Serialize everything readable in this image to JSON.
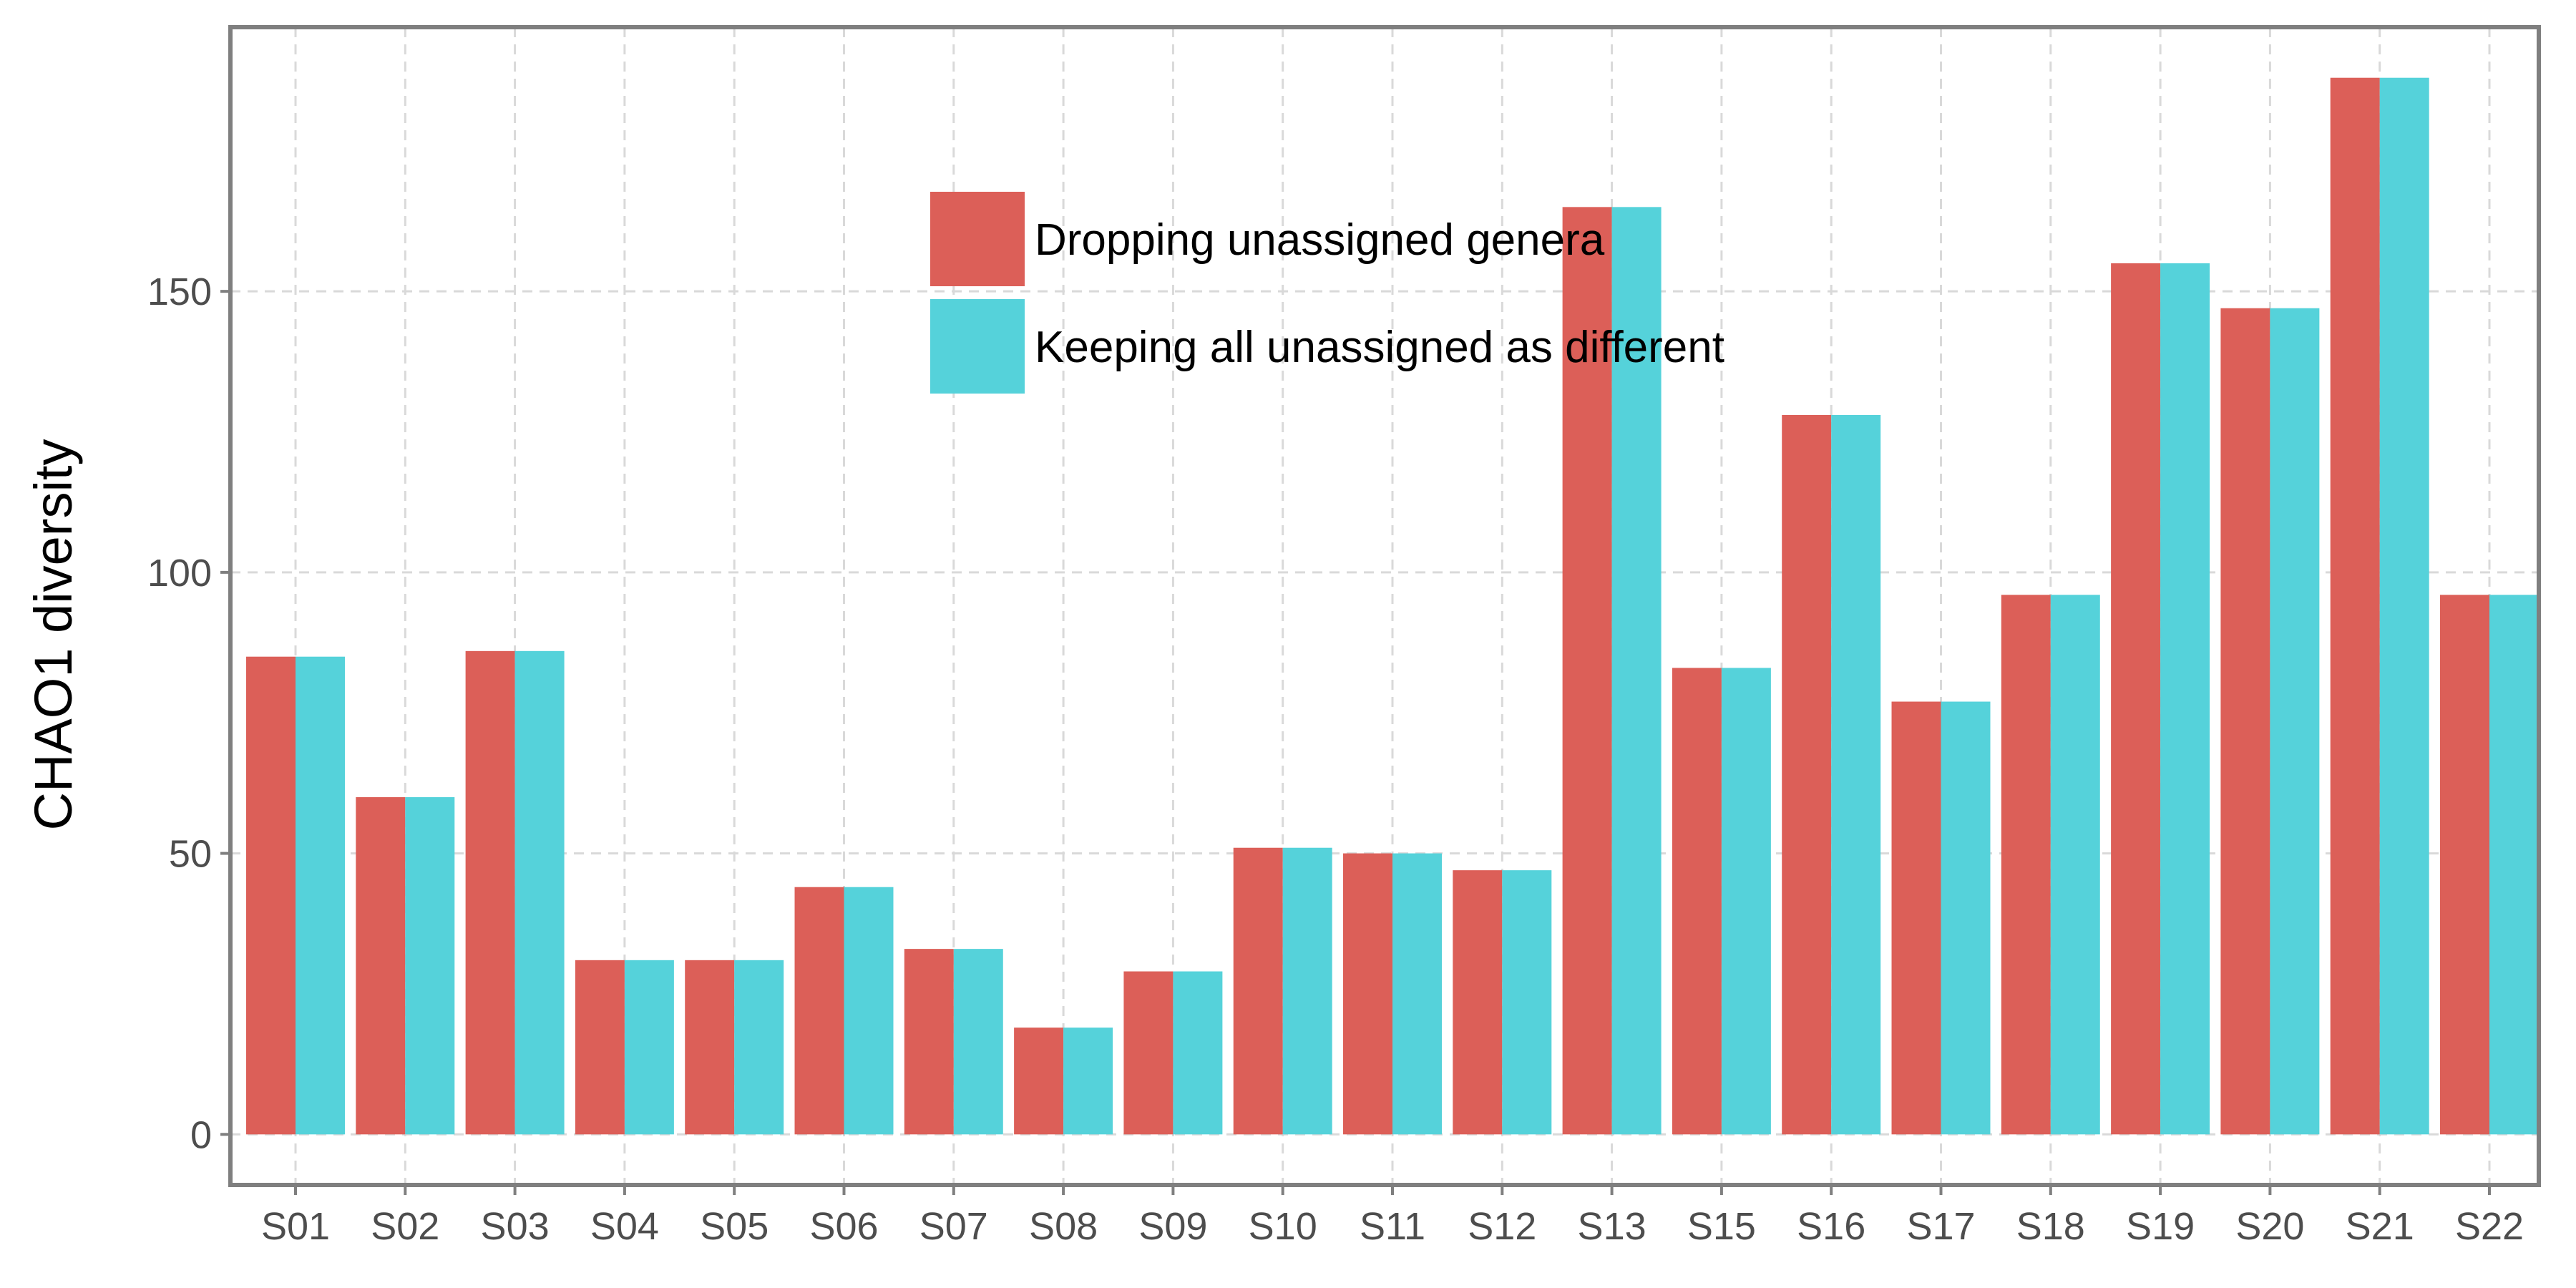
{
  "chart_data": {
    "type": "bar",
    "title": "",
    "xlabel": "",
    "ylabel": "CHAO1 diversity",
    "categories": [
      "S01",
      "S02",
      "S03",
      "S04",
      "S05",
      "S06",
      "S07",
      "S08",
      "S09",
      "S10",
      "S11",
      "S12",
      "S13",
      "S15",
      "S16",
      "S17",
      "S18",
      "S19",
      "S20",
      "S21",
      "S22"
    ],
    "series": [
      {
        "name": "Dropping unassigned genera",
        "color": "#dc5f58",
        "values": [
          85,
          60,
          86,
          31,
          31,
          44,
          33,
          19,
          29,
          51,
          50,
          47,
          165,
          83,
          128,
          77,
          96,
          155,
          147,
          188,
          96
        ]
      },
      {
        "name": "Keeping all unassigned as different",
        "color": "#55d2da",
        "values": [
          85,
          60,
          86,
          31,
          31,
          44,
          33,
          19,
          29,
          51,
          50,
          47,
          165,
          83,
          128,
          77,
          96,
          155,
          147,
          188,
          96
        ]
      }
    ],
    "ylim": [
      -9,
      197
    ],
    "yticks": [
      0,
      50,
      100,
      150
    ],
    "grid": true,
    "legend_position": "top-center",
    "colors": {
      "panel_border": "#7f7f7f",
      "grid": "#d9d9d9",
      "tick_text": "#4d4d4d",
      "axis_title": "#000000"
    }
  }
}
